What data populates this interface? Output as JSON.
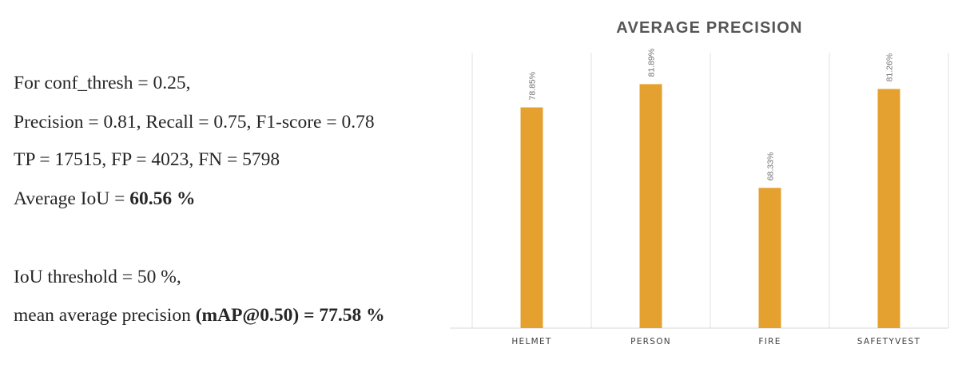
{
  "stats": {
    "conf_line": "For conf_thresh = 0.25,",
    "metrics_line": "Precision = 0.81, Recall = 0.75, F1-score = 0.78",
    "counts_line": "TP = 17515, FP = 4023, FN = 5798",
    "iou_prefix": "Average IoU = ",
    "iou_value": "60.56 %",
    "iou_threshold_line": "IoU threshold = 50 %,",
    "map_prefix": "mean average precision ",
    "map_value": "(mAP@0.50) = 77.58 %"
  },
  "chart_data": {
    "type": "bar",
    "title": "AVERAGE PRECISION",
    "categories": [
      "HELMET",
      "PERSON",
      "FIRE",
      "SAFETYVEST"
    ],
    "values": [
      78.85,
      81.89,
      68.33,
      81.26
    ],
    "data_labels": [
      "78.85%",
      "81.89%",
      "68.33%",
      "81.26%"
    ],
    "ylim": [
      50,
      86
    ],
    "grid": true,
    "bar_color": "#E5A12F",
    "grid_color": "#E0E0E0",
    "baseline_color": "#D9D9D9"
  }
}
